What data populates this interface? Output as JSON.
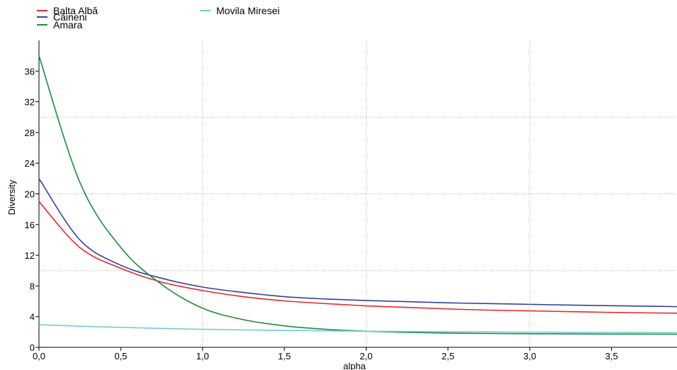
{
  "chart_data": {
    "type": "line",
    "xlabel": "alpha",
    "ylabel": "Diversity",
    "xlim": [
      0,
      3.9
    ],
    "ylim": [
      0,
      40
    ],
    "x_ticks": [
      0,
      0.5,
      1.0,
      1.5,
      2.0,
      2.5,
      3.0,
      3.5
    ],
    "x_tick_labels": [
      "0,0",
      "0,5",
      "1,0",
      "1,5",
      "2,0",
      "2,5",
      "3,0",
      "3,5"
    ],
    "y_ticks": [
      0,
      4,
      8,
      12,
      16,
      20,
      24,
      28,
      32,
      36
    ],
    "y_tick_labels": [
      "0",
      "4",
      "8",
      "12",
      "16",
      "20",
      "24",
      "28",
      "32",
      "36"
    ],
    "x_gridlines": [
      1.0,
      2.0,
      3.0
    ],
    "y_gridlines": [
      10,
      20,
      30
    ],
    "grid": true,
    "legend": "top-left",
    "x": [
      0,
      0.25,
      0.5,
      0.75,
      1.0,
      1.25,
      1.5,
      1.75,
      2.0,
      2.25,
      2.5,
      2.75,
      3.0,
      3.25,
      3.5,
      3.75,
      3.9
    ],
    "series": [
      {
        "name": "Balta Albă",
        "color": "#e8272a",
        "values": [
          19.0,
          13.0,
          10.3,
          8.5,
          7.4,
          6.6,
          6.05,
          5.7,
          5.4,
          5.2,
          5.0,
          4.85,
          4.75,
          4.65,
          4.55,
          4.48,
          4.45
        ]
      },
      {
        "name": "Căineni",
        "color": "#33419a",
        "values": [
          22.0,
          14.0,
          10.7,
          9.0,
          7.85,
          7.15,
          6.6,
          6.3,
          6.1,
          5.95,
          5.8,
          5.7,
          5.6,
          5.5,
          5.42,
          5.35,
          5.3
        ]
      },
      {
        "name": "Amara",
        "color": "#1e8a3c",
        "values": [
          38.0,
          21.5,
          13.0,
          8.2,
          5.1,
          3.6,
          2.8,
          2.35,
          2.1,
          1.95,
          1.85,
          1.8,
          1.77,
          1.75,
          1.73,
          1.72,
          1.71
        ]
      },
      {
        "name": "Movila Miresei",
        "color": "#74cdd4",
        "values": [
          2.95,
          2.75,
          2.6,
          2.45,
          2.35,
          2.27,
          2.2,
          2.15,
          2.1,
          2.06,
          2.03,
          2.0,
          1.98,
          1.96,
          1.94,
          1.92,
          1.91
        ]
      }
    ]
  }
}
